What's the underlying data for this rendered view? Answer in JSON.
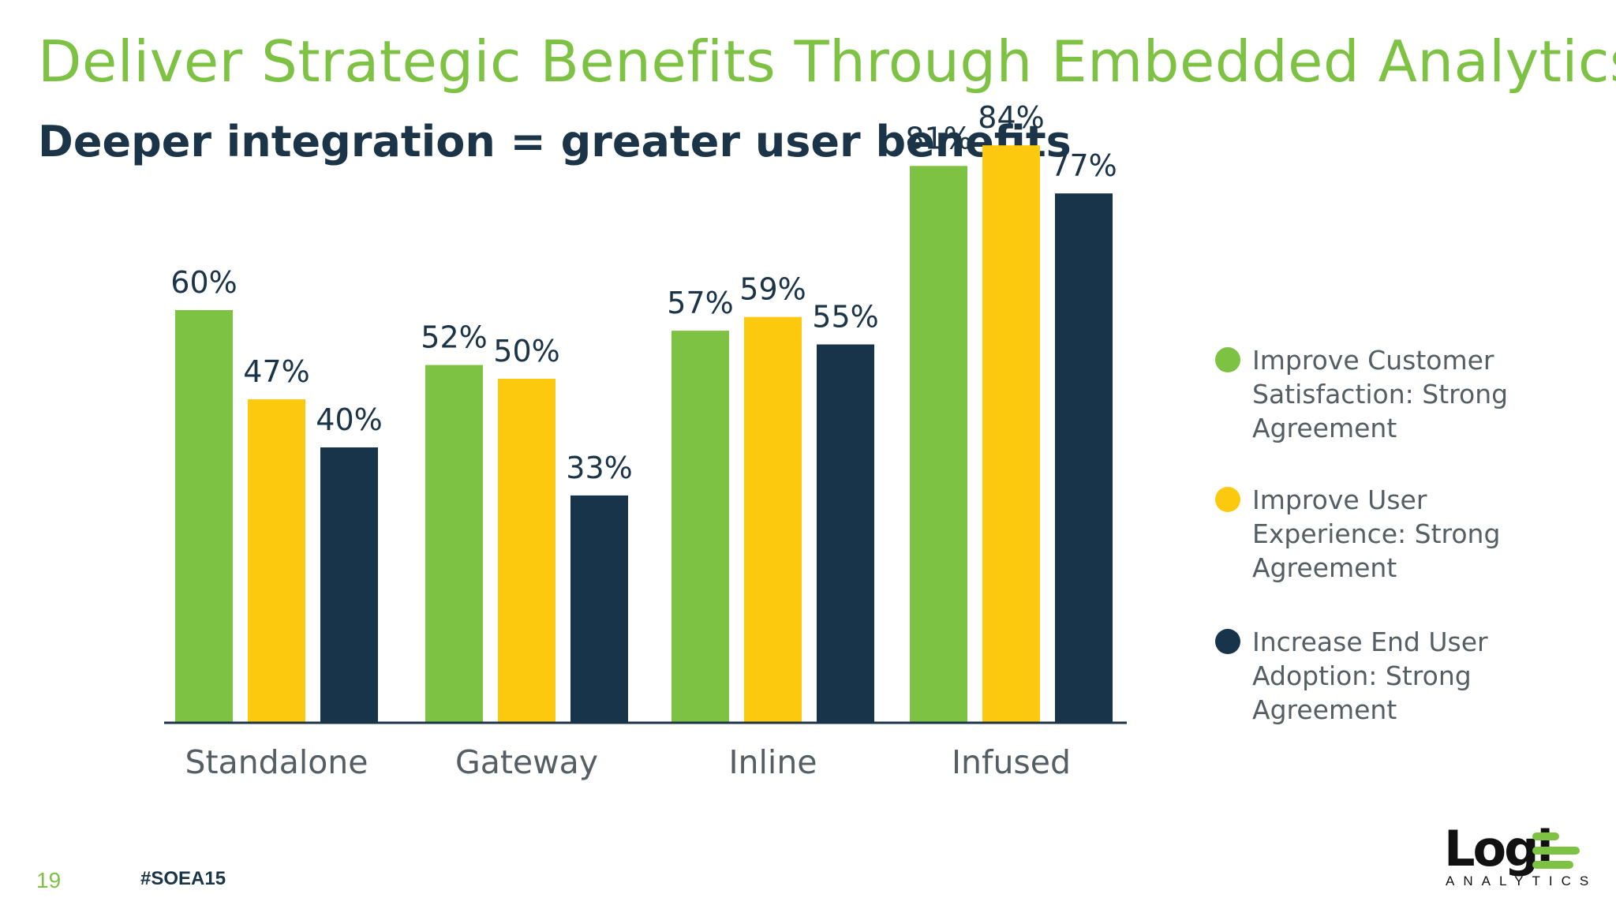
{
  "slide": {
    "title": "Deliver Strategic Benefits Through Embedded Analytics",
    "subtitle": "Deeper integration = greater user benefits",
    "page_number": "19",
    "hashtag": "#SOEA15",
    "logo_text": "Logi",
    "logo_sub": "ANALYTICS"
  },
  "chart_data": {
    "type": "bar",
    "categories": [
      "Standalone",
      "Gateway",
      "Inline",
      "Infused"
    ],
    "series": [
      {
        "name": "Improve Customer Satisfaction: Strong Agreement",
        "color": "#7dc243",
        "values": [
          60,
          52,
          57,
          81
        ],
        "labels": [
          "60%",
          "52%",
          "57%",
          "81%"
        ],
        "legend_lines": [
          "Improve Customer",
          "Satisfaction: Strong",
          "Agreement"
        ]
      },
      {
        "name": "Improve User Experience: Strong Agreement",
        "color": "#fdc90f",
        "values": [
          47,
          50,
          59,
          84
        ],
        "labels": [
          "47%",
          "50%",
          "59%",
          "84%"
        ],
        "legend_lines": [
          "Improve User",
          "Experience: Strong",
          "Agreement"
        ]
      },
      {
        "name": "Increase End User Adoption: Strong Agreement",
        "color": "#18344a",
        "values": [
          40,
          33,
          55,
          77
        ],
        "labels": [
          "40%",
          "33%",
          "55%",
          "77%"
        ],
        "legend_lines": [
          "Increase End User",
          "Adoption: Strong",
          "Agreement"
        ]
      }
    ],
    "ylim": [
      0,
      100
    ],
    "grid": false,
    "legend_position": "right",
    "value_unit": "%"
  }
}
